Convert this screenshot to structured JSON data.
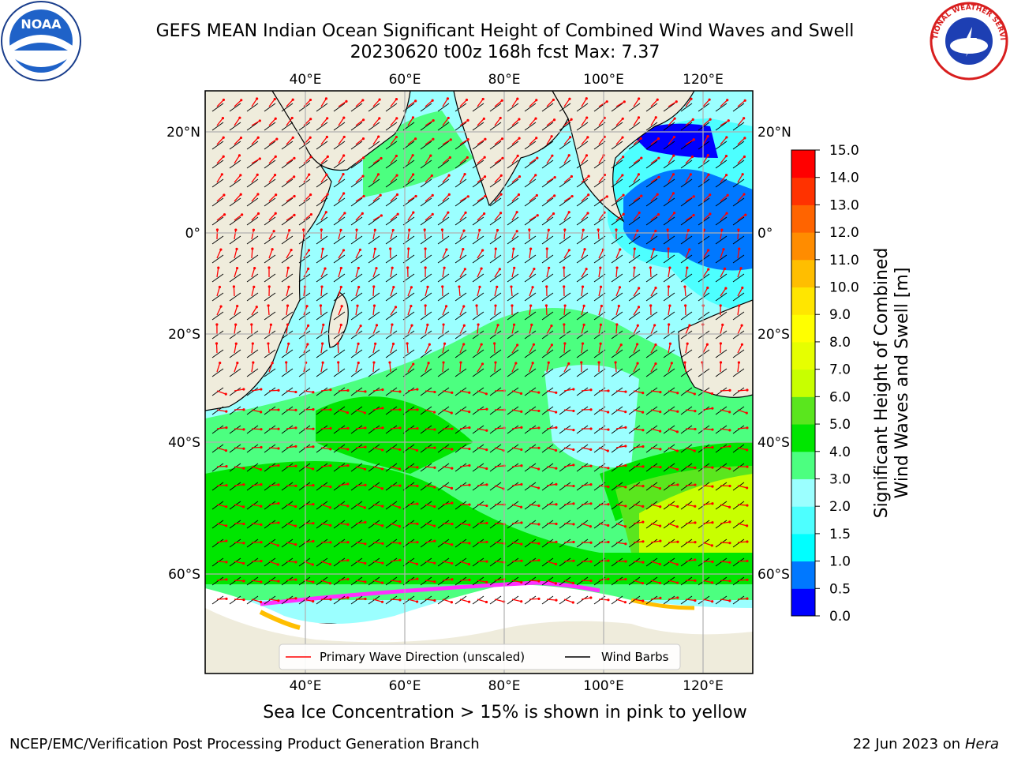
{
  "title_line1": "GEFS MEAN Indian Ocean Significant Height of Combined Wind Waves and Swell",
  "title_line2": "20230620 t00z 168h fcst   Max: 7.37",
  "logos": {
    "left": "noaa-logo",
    "left_text": "NOAA",
    "right": "nws-logo",
    "right_text": "NATIONAL WEATHER SERVICE"
  },
  "map": {
    "lon_ticks_top": [
      "40°E",
      "60°E",
      "80°E",
      "100°E",
      "120°E"
    ],
    "lon_ticks_bottom": [
      "40°E",
      "60°E",
      "80°E",
      "100°E",
      "120°E"
    ],
    "lat_ticks_left": [
      "20°N",
      "0°",
      "20°S",
      "40°S",
      "60°S"
    ],
    "lat_ticks_right": [
      "20°N",
      "0°",
      "20°S",
      "40°S",
      "60°S"
    ],
    "colors": {
      "land": "#efecdc",
      "ice": "#ffffff",
      "wave_arrow": "#ff0000",
      "barb": "#000000"
    }
  },
  "legend": {
    "items": [
      {
        "label": "Primary Wave Direction (unscaled)",
        "color": "#ff0000"
      },
      {
        "label": "Wind Barbs",
        "color": "#000000"
      }
    ]
  },
  "colorbar": {
    "label_line1": "Significant Height of Combined",
    "label_line2": "Wind Waves and Swell [m]",
    "ticks": [
      "0.0",
      "0.5",
      "1.0",
      "1.5",
      "2.0",
      "3.0",
      "4.0",
      "5.0",
      "6.0",
      "7.0",
      "8.0",
      "9.0",
      "10.0",
      "11.0",
      "12.0",
      "13.0",
      "14.0",
      "15.0"
    ],
    "colors": [
      "#0000ff",
      "#0078ff",
      "#00ffff",
      "#4dffff",
      "#9bffff",
      "#4cff80",
      "#00e600",
      "#5ae61e",
      "#c8ff00",
      "#e6ff00",
      "#ffff00",
      "#ffe600",
      "#ffbe00",
      "#ff8c00",
      "#ff6400",
      "#ff3200",
      "#ff0000"
    ]
  },
  "ice_note": "Sea Ice Concentration > 15% is shown in pink to yellow",
  "credit": "NCEP/EMC/Verification Post Processing Product Generation Branch",
  "date_stamp": "22 Jun 2023 on",
  "date_host": "Hera"
}
